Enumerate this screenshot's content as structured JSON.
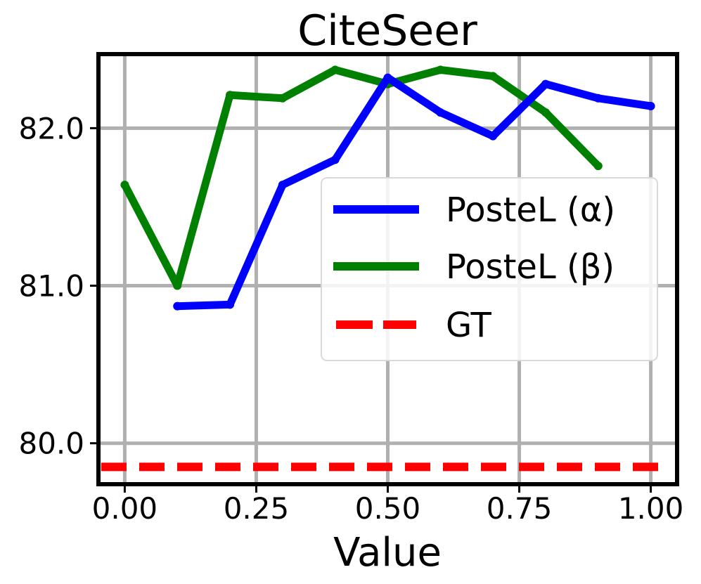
{
  "chart_data": {
    "type": "line",
    "title": "CiteSeer",
    "xlabel": "Value",
    "ylabel": "",
    "xlim": [
      -0.05,
      1.05
    ],
    "ylim": [
      79.74,
      82.47
    ],
    "xticks": [
      0.0,
      0.25,
      0.5,
      0.75,
      1.0
    ],
    "xtick_labels": [
      "0.00",
      "0.25",
      "0.50",
      "0.75",
      "1.00"
    ],
    "yticks": [
      80.0,
      81.0,
      82.0
    ],
    "ytick_labels": [
      "80.0",
      "81.0",
      "82.0"
    ],
    "grid": true,
    "legend_position": "center-right",
    "series": [
      {
        "name": "PosteL ($\\alpha$)",
        "legend_label": "PosteL (α)",
        "color": "#0000ff",
        "style": "solid",
        "x": [
          0.1,
          0.2,
          0.3,
          0.4,
          0.5,
          0.6,
          0.7,
          0.8,
          0.9,
          1.0
        ],
        "values": [
          80.87,
          80.88,
          81.64,
          81.8,
          82.32,
          82.1,
          81.95,
          82.28,
          82.19,
          82.14
        ]
      },
      {
        "name": "PosteL ($\\beta$)",
        "legend_label": "PosteL (β)",
        "color": "#008000",
        "style": "solid",
        "x": [
          0.0,
          0.1,
          0.2,
          0.3,
          0.4,
          0.5,
          0.6,
          0.7,
          0.8,
          0.9
        ],
        "values": [
          81.64,
          81.0,
          82.21,
          82.19,
          82.37,
          82.28,
          82.37,
          82.33,
          82.1,
          81.76
        ]
      },
      {
        "name": "GT",
        "legend_label": "GT",
        "color": "#ff0000",
        "style": "dashed",
        "y_constant": 79.85
      }
    ]
  }
}
